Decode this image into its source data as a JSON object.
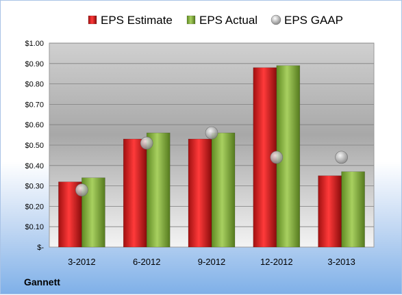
{
  "chart_data": {
    "type": "bar",
    "categories": [
      "3-2012",
      "6-2012",
      "9-2012",
      "12-2012",
      "3-2013"
    ],
    "series": [
      {
        "name": "EPS Estimate",
        "kind": "bar",
        "color": "#c81e1e",
        "values": [
          0.32,
          0.53,
          0.53,
          0.88,
          0.35
        ]
      },
      {
        "name": "EPS Actual",
        "kind": "bar",
        "color": "#7ea83a",
        "values": [
          0.34,
          0.56,
          0.56,
          0.89,
          0.37
        ]
      },
      {
        "name": "EPS GAAP",
        "kind": "marker",
        "color": "#a8a8a8",
        "values": [
          0.28,
          0.51,
          0.56,
          0.44,
          0.44
        ]
      }
    ],
    "ylim": [
      0,
      1.0
    ],
    "yticks": [
      "$-",
      "$0.10",
      "$0.20",
      "$0.30",
      "$0.40",
      "$0.50",
      "$0.60",
      "$0.70",
      "$0.80",
      "$0.90",
      "$1.00"
    ],
    "grid": true,
    "legend_position": "top",
    "company": "Gannett"
  }
}
